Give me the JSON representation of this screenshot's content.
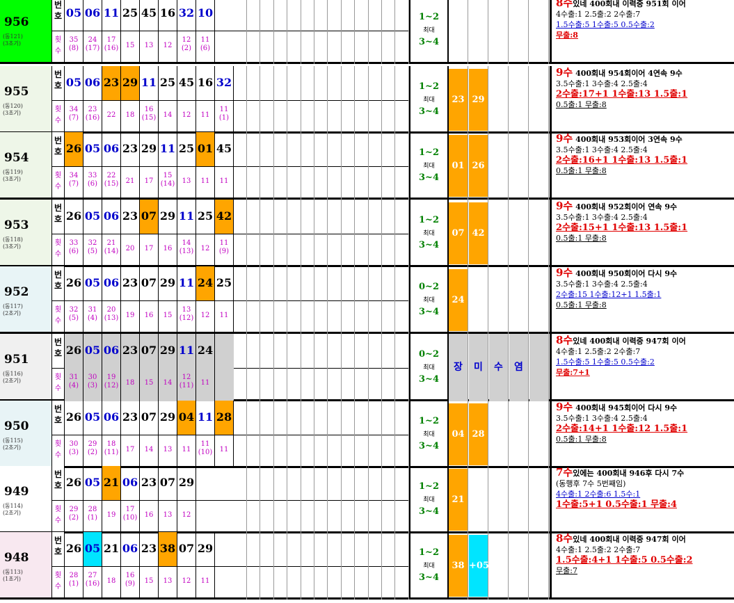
{
  "rows": [
    {
      "draw": "956",
      "sub1": "(동121)",
      "sub2": "(3초기)",
      "nums": [
        "05",
        "06",
        "11",
        "25",
        "45",
        "16",
        "32",
        "10"
      ],
      "cnts": [
        [
          "35",
          "(8)"
        ],
        [
          "24",
          "(17)"
        ],
        [
          "17",
          "(16)"
        ],
        [
          "15",
          ""
        ],
        [
          "13",
          ""
        ],
        [
          "12",
          ""
        ],
        [
          "12",
          "(2)"
        ],
        [
          "11",
          "(6)"
        ]
      ],
      "range_a": "1~2",
      "range_b": "최대",
      "range_c": "3~4",
      "picks": [],
      "n1": "8수있네 400회내 이력중 951회 이어",
      "n2": "4수출:1  2.5출:2   2수출:7",
      "n3": "1.5수출:5 1수출:5  0.5수출:2",
      "n4": "무출:8"
    },
    {
      "draw": "955",
      "sub1": "(동120)",
      "sub2": "(3초기)",
      "nums": [
        "05",
        "06",
        "23",
        "29",
        "11",
        "25",
        "45",
        "16",
        "32"
      ],
      "cnts": [
        [
          "34",
          "(7)"
        ],
        [
          "23",
          "(16)"
        ],
        [
          "22",
          ""
        ],
        [
          "18",
          ""
        ],
        [
          "16",
          "(15)"
        ],
        [
          "14",
          ""
        ],
        [
          "12",
          ""
        ],
        [
          "11",
          ""
        ],
        [
          "11",
          "(1)"
        ]
      ],
      "range_a": "1~2",
      "range_b": "최대",
      "range_c": "3~4",
      "picks": [
        "23",
        "29"
      ],
      "n1": "9수 400회내 954회이어 4연속 9수",
      "n2": "3.5수출:1  3수출:4  2.5출:4",
      "n3": "2수출:17+1  1수출:13  1.5출:1",
      "n4": "0.5출:1  무출:8"
    },
    {
      "draw": "954",
      "sub1": "(동119)",
      "sub2": "(3초기)",
      "nums": [
        "26",
        "05",
        "06",
        "23",
        "29",
        "11",
        "25",
        "01",
        "45"
      ],
      "cnts": [
        [
          "34",
          "(7)"
        ],
        [
          "33",
          "(6)"
        ],
        [
          "22",
          "(15)"
        ],
        [
          "21",
          ""
        ],
        [
          "17",
          ""
        ],
        [
          "15",
          "(14)"
        ],
        [
          "13",
          ""
        ],
        [
          "11",
          ""
        ],
        [
          "11",
          ""
        ]
      ],
      "range_a": "1~2",
      "range_b": "최대",
      "range_c": "3~4",
      "picks": [
        "01",
        "26"
      ],
      "n1": "9수 400회내 953회이어 3연속 9수",
      "n2": "3.5수출:1  3수출:4  2.5출:4",
      "n3": "2수출:16+1  1수출:13  1.5출:1",
      "n4": "0.5출:1  무출:8"
    },
    {
      "draw": "953",
      "sub1": "(동118)",
      "sub2": "(3초기)",
      "nums": [
        "26",
        "05",
        "06",
        "23",
        "07",
        "29",
        "11",
        "25",
        "42"
      ],
      "cnts": [
        [
          "33",
          "(6)"
        ],
        [
          "32",
          "(5)"
        ],
        [
          "21",
          "(14)"
        ],
        [
          "20",
          ""
        ],
        [
          "17",
          ""
        ],
        [
          "16",
          ""
        ],
        [
          "14",
          "(13)"
        ],
        [
          "12",
          ""
        ],
        [
          "11",
          "(9)"
        ]
      ],
      "range_a": "1~2",
      "range_b": "최대",
      "range_c": "3~4",
      "picks": [
        "07",
        "42"
      ],
      "n1": "9수 400회내 952회이어 연속 9수",
      "n2": "3.5수출:1  3수출:4  2.5출:4",
      "n3": "2수출:15+1  1수출:13  1.5출:1",
      "n4": "0.5출:1  무출:8"
    },
    {
      "draw": "952",
      "sub1": "(동117)",
      "sub2": "(2초기)",
      "nums": [
        "26",
        "05",
        "06",
        "23",
        "07",
        "29",
        "11",
        "24",
        "25"
      ],
      "cnts": [
        [
          "32",
          "(5)"
        ],
        [
          "31",
          "(4)"
        ],
        [
          "20",
          "(13)"
        ],
        [
          "19",
          ""
        ],
        [
          "16",
          ""
        ],
        [
          "15",
          ""
        ],
        [
          "13",
          "(12)"
        ],
        [
          "12",
          ""
        ],
        [
          "11",
          ""
        ]
      ],
      "range_a": "0~2",
      "range_b": "최대",
      "range_c": "3~4",
      "picks": [
        "24"
      ],
      "n1": "9수 400회내 950회이어 다시 9수",
      "n2": "3.5수출:1  3수출:4  2.5출:4",
      "n3": "2수출:15  1수출:12+1  1.5출:1",
      "n4": "0.5출:1  무출:8"
    },
    {
      "draw": "951",
      "sub1": "(동116)",
      "sub2": "(2초기)",
      "nums": [
        "26",
        "05",
        "06",
        "23",
        "07",
        "29",
        "11",
        "24"
      ],
      "cnts": [
        [
          "31",
          "(4)"
        ],
        [
          "30",
          "(3)"
        ],
        [
          "19",
          "(12)"
        ],
        [
          "18",
          ""
        ],
        [
          "15",
          ""
        ],
        [
          "14",
          ""
        ],
        [
          "12",
          "(11)"
        ],
        [
          "11",
          ""
        ]
      ],
      "range_a": "0~2",
      "range_b": "최대",
      "range_c": "3~4",
      "picks": [],
      "banner": [
        "장",
        "미",
        "수",
        "염"
      ],
      "n1": "8수있네 400회내 이력중 947회 이어",
      "n2": "4수출:1  2.5출:2   2수출:7",
      "n3": "1.5수출:5 1수출:5  0.5수출:2",
      "n4": "무출:7+1"
    },
    {
      "draw": "950",
      "sub1": "(동115)",
      "sub2": "(2초기)",
      "nums": [
        "26",
        "05",
        "06",
        "23",
        "07",
        "29",
        "04",
        "11",
        "28"
      ],
      "cnts": [
        [
          "30",
          "(3)"
        ],
        [
          "29",
          "(2)"
        ],
        [
          "18",
          "(11)"
        ],
        [
          "17",
          ""
        ],
        [
          "14",
          ""
        ],
        [
          "13",
          ""
        ],
        [
          "11",
          ""
        ],
        [
          "11",
          "(10)"
        ],
        [
          "11",
          ""
        ]
      ],
      "range_a": "1~2",
      "range_b": "최대",
      "range_c": "3~4",
      "picks": [
        "04",
        "28"
      ],
      "n1": "9수 400회내 945회이어 다시 9수",
      "n2": "3.5수출:1  3수출:4  2.5출:4",
      "n3": "2수출:14+1  1수출:12  1.5출:1",
      "n4": "0.5출:1  무출:8"
    },
    {
      "draw": "949",
      "sub1": "(동114)",
      "sub2": "(2초기)",
      "nums": [
        "26",
        "05",
        "21",
        "06",
        "23",
        "07",
        "29"
      ],
      "cnts": [
        [
          "29",
          "(2)"
        ],
        [
          "28",
          "(1)"
        ],
        [
          "19",
          ""
        ],
        [
          "17",
          "(10)"
        ],
        [
          "16",
          ""
        ],
        [
          "13",
          ""
        ],
        [
          "12",
          ""
        ]
      ],
      "range_a": "1~2",
      "range_b": "최대",
      "range_c": "3~4",
      "picks": [
        "21"
      ],
      "n1": "7수있에는 400회내 946후 다시 7수",
      "n2": "(동행후  7수 5번째임)",
      "n3": "4수출:1   2수출:6  1.5수:1",
      "n4": "1수출:5+1  0.5수출:1  무출:4"
    },
    {
      "draw": "948",
      "sub1": "(동113)",
      "sub2": "(1초기)",
      "nums": [
        "26",
        "05",
        "21",
        "06",
        "23",
        "38",
        "07",
        "29"
      ],
      "cnts": [
        [
          "28",
          "(1)"
        ],
        [
          "27",
          "(16)"
        ],
        [
          "18",
          ""
        ],
        [
          "16",
          "(9)"
        ],
        [
          "15",
          ""
        ],
        [
          "13",
          ""
        ],
        [
          "12",
          ""
        ],
        [
          "11",
          ""
        ]
      ],
      "range_a": "1~2",
      "range_b": "최대",
      "range_c": "3~4",
      "picks": [
        "38",
        "+05"
      ],
      "n1": "8수있네 400회내 이력중 947회 이어",
      "n2": "4수출:1   2.5출:2   2수출:7",
      "n3": "1.5수출:4+1  1수출:5  0.5수출:2",
      "n4": "무출:7"
    }
  ],
  "labels": {
    "top": "번호",
    "bot": "횟수"
  },
  "colors": {
    "green": "#00ff00",
    "orange": "#ffa500",
    "cyan": "#00e5ff",
    "gray": "#d0d0d0",
    "blue": "#0000cc",
    "red": "#e00000"
  }
}
